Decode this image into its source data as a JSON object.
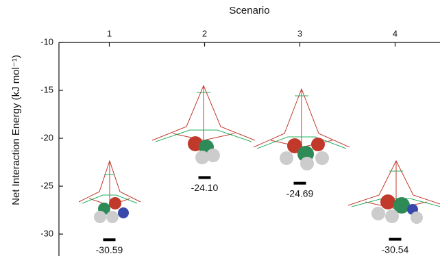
{
  "chart_data": {
    "type": "scatter",
    "x_label": "Scenario",
    "y_label": "Net Interaction Energy (kJ mol⁻¹)",
    "categories": [
      "1",
      "2",
      "3",
      "4"
    ],
    "values": [
      -30.59,
      -24.1,
      -24.69,
      -30.54
    ],
    "value_labels": [
      "-30.59",
      "-24.10",
      "-24.69",
      "-30.54"
    ],
    "color": "#000000",
    "ylim": [
      -32,
      -10
    ],
    "yticks": [
      -10,
      -15,
      -20,
      -25,
      -30
    ]
  }
}
